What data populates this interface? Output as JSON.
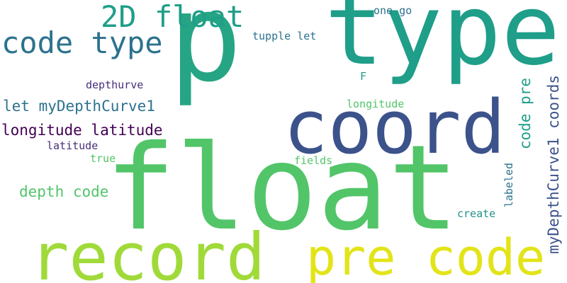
{
  "word_cloud": {
    "background": "#ffffff",
    "palette": [
      "#440154",
      "#472d7b",
      "#3b528b",
      "#2c728e",
      "#21918c",
      "#1f9e89",
      "#26a584",
      "#52c569",
      "#a0da39",
      "#e2e418"
    ],
    "words": {
      "p": "p",
      "type": "type",
      "float": "float",
      "coord": "coord",
      "record": "record",
      "pre_code": "pre code",
      "float_2d": "2D float",
      "code_type": "code type",
      "let_mydepthcurve1": "let myDepthCurve1",
      "longitude_latitude": "longitude latitude",
      "depth_code": "depth code",
      "depthurve": "depthurve",
      "latitude": "latitude",
      "true": "true",
      "one_go": "one go",
      "tupple_let": "tupple let",
      "F": "F",
      "longitude": "longitude",
      "fields": "fields",
      "create": "create",
      "labeled": "labeled",
      "code_pre": "code pre",
      "mydepthcurve1_coords": "myDepthCurve1 coords"
    }
  }
}
